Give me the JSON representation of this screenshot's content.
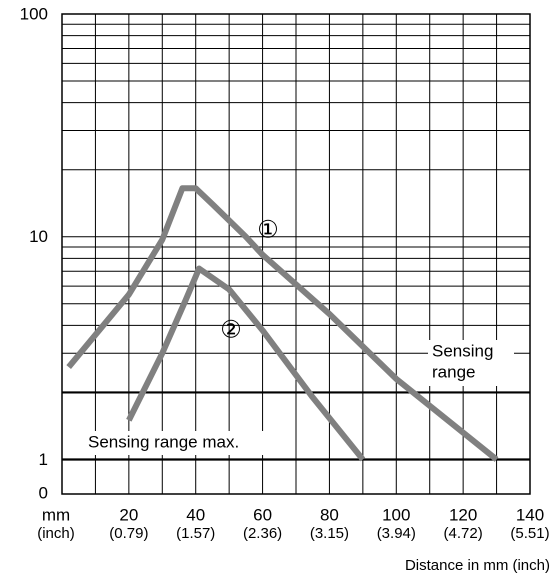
{
  "chart_data": {
    "type": "line",
    "log_y": true,
    "x_label": "Distance in mm (inch)",
    "x_unit_label": "mm",
    "x_unit_sublabel": "(inch)",
    "y_origin_label": "0",
    "xlim": [
      0,
      140
    ],
    "xticks": [
      20,
      40,
      60,
      80,
      100,
      120,
      140
    ],
    "xtick_sublabels": [
      "(0.79)",
      "(1.57)",
      "(2.36)",
      "(3.15)",
      "(3.94)",
      "(4.72)",
      "(5.51)"
    ],
    "x_grid": [
      10,
      20,
      30,
      40,
      50,
      60,
      70,
      80,
      90,
      100,
      110,
      120,
      130
    ],
    "ylim": [
      0.7,
      100
    ],
    "yticks": [
      1,
      10,
      100
    ],
    "y_grid": [
      2,
      3,
      4,
      5,
      6,
      7,
      8,
      9,
      20,
      30,
      40,
      50,
      60,
      70,
      80,
      90
    ],
    "y_thick_lines": [
      1,
      2
    ],
    "annotations": [
      "Sensing range max.",
      "Sensing",
      "range"
    ],
    "series": [
      {
        "name": "①",
        "color": "#808080",
        "x": [
          2,
          20,
          30,
          36,
          40,
          45,
          55,
          60,
          80,
          100,
          130
        ],
        "values": [
          2.6,
          5.5,
          9.7,
          16.5,
          16.5,
          14,
          10,
          8.3,
          4.5,
          2.3,
          1
        ]
      },
      {
        "name": "②",
        "color": "#808080",
        "x": [
          20,
          30,
          37,
          41,
          50,
          60,
          75,
          90
        ],
        "values": [
          1.5,
          3,
          5.2,
          7.2,
          5.8,
          3.8,
          1.9,
          1
        ]
      }
    ]
  }
}
